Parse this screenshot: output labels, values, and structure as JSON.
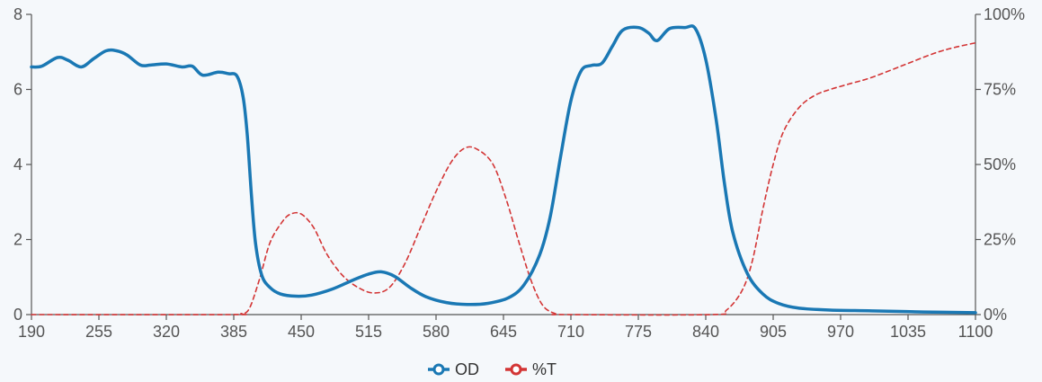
{
  "chart_data": {
    "type": "line",
    "title": "",
    "xlabel": "",
    "ylabel": "",
    "y2label": "",
    "grid": false,
    "legend_position": "bottom",
    "xlim": [
      190,
      1100
    ],
    "ylim": [
      0,
      8
    ],
    "y2lim": [
      0,
      100
    ],
    "x_ticks": [
      190,
      255,
      320,
      385,
      450,
      515,
      580,
      645,
      710,
      775,
      840,
      905,
      970,
      1035,
      1100
    ],
    "x_tick_labels": [
      "190",
      "255",
      "320",
      "385",
      "450",
      "515",
      "580",
      "645",
      "710",
      "775",
      "840",
      "905",
      "970",
      "1035",
      "1100"
    ],
    "y_ticks": [
      0,
      2,
      4,
      6,
      8
    ],
    "y_tick_labels": [
      "0",
      "2",
      "4",
      "6",
      "8"
    ],
    "y2_ticks": [
      0,
      25,
      50,
      75,
      100
    ],
    "y2_tick_labels": [
      "0%",
      "25%",
      "50%",
      "75%",
      "100%"
    ],
    "series": [
      {
        "name": "OD",
        "axis": "left",
        "color": "#1a78b4",
        "style": "solid",
        "points": [
          [
            190,
            6.6
          ],
          [
            200,
            6.62
          ],
          [
            215,
            6.85
          ],
          [
            225,
            6.78
          ],
          [
            238,
            6.6
          ],
          [
            250,
            6.82
          ],
          [
            262,
            7.03
          ],
          [
            272,
            7.03
          ],
          [
            282,
            6.92
          ],
          [
            295,
            6.65
          ],
          [
            305,
            6.65
          ],
          [
            320,
            6.68
          ],
          [
            335,
            6.6
          ],
          [
            345,
            6.62
          ],
          [
            355,
            6.38
          ],
          [
            370,
            6.46
          ],
          [
            380,
            6.42
          ],
          [
            388,
            6.36
          ],
          [
            394,
            5.8
          ],
          [
            398,
            4.8
          ],
          [
            402,
            3.2
          ],
          [
            406,
            1.9
          ],
          [
            412,
            1.05
          ],
          [
            420,
            0.72
          ],
          [
            430,
            0.55
          ],
          [
            445,
            0.49
          ],
          [
            460,
            0.52
          ],
          [
            480,
            0.68
          ],
          [
            500,
            0.92
          ],
          [
            515,
            1.08
          ],
          [
            527,
            1.14
          ],
          [
            540,
            1.02
          ],
          [
            555,
            0.72
          ],
          [
            570,
            0.48
          ],
          [
            590,
            0.32
          ],
          [
            610,
            0.27
          ],
          [
            630,
            0.3
          ],
          [
            650,
            0.45
          ],
          [
            665,
            0.8
          ],
          [
            680,
            1.6
          ],
          [
            690,
            2.6
          ],
          [
            700,
            4.2
          ],
          [
            710,
            5.7
          ],
          [
            720,
            6.5
          ],
          [
            730,
            6.64
          ],
          [
            740,
            6.7
          ],
          [
            750,
            7.15
          ],
          [
            760,
            7.58
          ],
          [
            775,
            7.65
          ],
          [
            785,
            7.5
          ],
          [
            793,
            7.3
          ],
          [
            805,
            7.62
          ],
          [
            820,
            7.65
          ],
          [
            830,
            7.62
          ],
          [
            840,
            6.8
          ],
          [
            850,
            5.2
          ],
          [
            858,
            3.5
          ],
          [
            866,
            2.2
          ],
          [
            880,
            1.1
          ],
          [
            895,
            0.55
          ],
          [
            910,
            0.3
          ],
          [
            930,
            0.17
          ],
          [
            960,
            0.12
          ],
          [
            1000,
            0.1
          ],
          [
            1050,
            0.07
          ],
          [
            1100,
            0.05
          ]
        ]
      },
      {
        "name": "%T",
        "axis": "right",
        "color": "#d33535",
        "style": "dashed",
        "points": [
          [
            190,
            0
          ],
          [
            380,
            0
          ],
          [
            392,
            0.3
          ],
          [
            400,
            2
          ],
          [
            410,
            12
          ],
          [
            420,
            24
          ],
          [
            432,
            31
          ],
          [
            440,
            33.5
          ],
          [
            450,
            33.5
          ],
          [
            462,
            29
          ],
          [
            475,
            20
          ],
          [
            490,
            13
          ],
          [
            505,
            9
          ],
          [
            520,
            7.2
          ],
          [
            535,
            9
          ],
          [
            550,
            17
          ],
          [
            565,
            29
          ],
          [
            580,
            41
          ],
          [
            595,
            51
          ],
          [
            608,
            55.5
          ],
          [
            620,
            55
          ],
          [
            635,
            50
          ],
          [
            648,
            38
          ],
          [
            660,
            24
          ],
          [
            672,
            11
          ],
          [
            683,
            3
          ],
          [
            695,
            0.3
          ],
          [
            705,
            0
          ],
          [
            845,
            0
          ],
          [
            860,
            1.5
          ],
          [
            875,
            8
          ],
          [
            885,
            18
          ],
          [
            895,
            35
          ],
          [
            905,
            50
          ],
          [
            915,
            61
          ],
          [
            930,
            69
          ],
          [
            945,
            73
          ],
          [
            960,
            75
          ],
          [
            980,
            77
          ],
          [
            1000,
            79
          ],
          [
            1030,
            83
          ],
          [
            1060,
            87
          ],
          [
            1080,
            89
          ],
          [
            1100,
            90.5
          ]
        ]
      }
    ]
  }
}
